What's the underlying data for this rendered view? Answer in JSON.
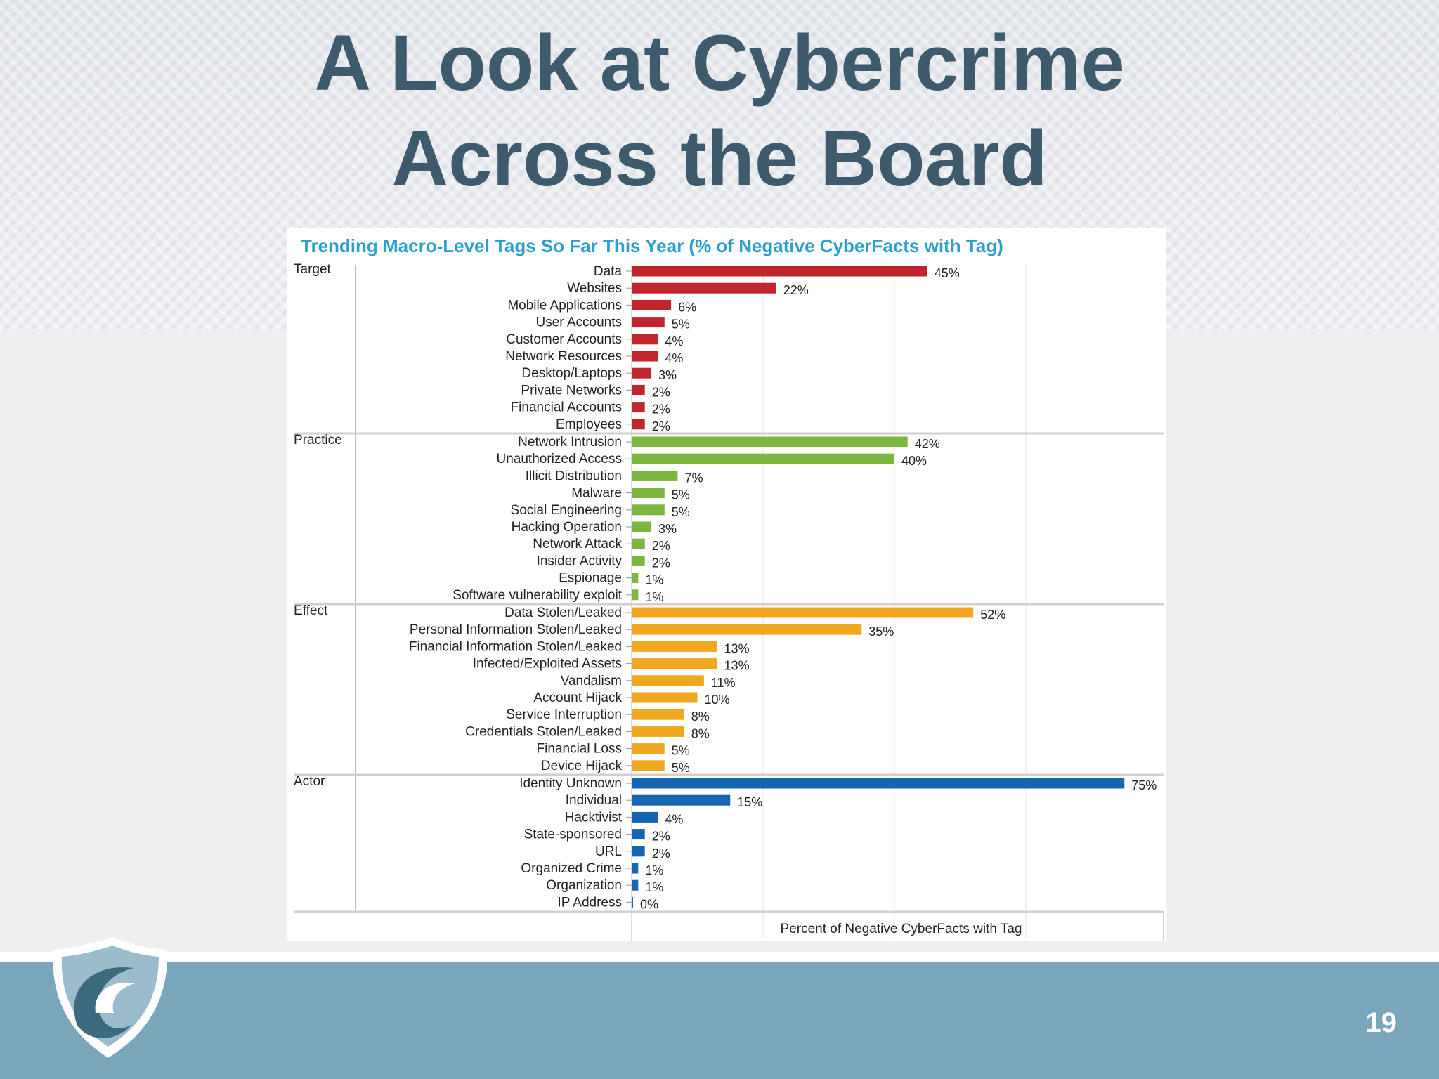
{
  "slide": {
    "title_line1": "A Look at Cybercrime",
    "title_line2": "Across the Board",
    "page_number": "19"
  },
  "colors": {
    "title": "#3e5a6d",
    "chart_title": "#2c9fd0",
    "target": "#c0262e",
    "practice": "#7cb540",
    "effect": "#f0a821",
    "actor": "#1565b0",
    "footer": "#79a6ba"
  },
  "logo": {
    "icon": "shield-wave-icon"
  },
  "chart_data": {
    "type": "bar",
    "orientation": "horizontal",
    "title": "Trending Macro-Level Tags So Far This Year (% of Negative CyberFacts with Tag)",
    "xlabel": "Percent of Negative CyberFacts with Tag",
    "xlim": [
      0,
      80
    ],
    "grid": true,
    "groups": [
      {
        "name": "Target",
        "color": "#c0262e",
        "categories": [
          "Data",
          "Websites",
          "Mobile Applications",
          "User Accounts",
          "Customer Accounts",
          "Network Resources",
          "Desktop/Laptops",
          "Private Networks",
          "Financial Accounts",
          "Employees"
        ],
        "values": [
          45,
          22,
          6,
          5,
          4,
          4,
          3,
          2,
          2,
          2
        ],
        "labels": [
          "45%",
          "22%",
          "6%",
          "5%",
          "4%",
          "4%",
          "3%",
          "2%",
          "2%",
          "2%"
        ]
      },
      {
        "name": "Practice",
        "color": "#7cb540",
        "categories": [
          "Network Intrusion",
          "Unauthorized Access",
          "Illicit Distribution",
          "Malware",
          "Social Engineering",
          "Hacking Operation",
          "Network Attack",
          "Insider Activity",
          "Espionage",
          "Software vulnerability exploit"
        ],
        "values": [
          42,
          40,
          7,
          5,
          5,
          3,
          2,
          2,
          1,
          1
        ],
        "labels": [
          "42%",
          "40%",
          "7%",
          "5%",
          "5%",
          "3%",
          "2%",
          "2%",
          "1%",
          "1%"
        ]
      },
      {
        "name": "Effect",
        "color": "#f0a821",
        "categories": [
          "Data Stolen/Leaked",
          "Personal Information Stolen/Leaked",
          "Financial Information Stolen/Leaked",
          "Infected/Exploited Assets",
          "Vandalism",
          "Account Hijack",
          "Service Interruption",
          "Credentials Stolen/Leaked",
          "Financial Loss",
          "Device Hijack"
        ],
        "values": [
          52,
          35,
          13,
          13,
          11,
          10,
          8,
          8,
          5,
          5
        ],
        "labels": [
          "52%",
          "35%",
          "13%",
          "13%",
          "11%",
          "10%",
          "8%",
          "8%",
          "5%",
          "5%"
        ]
      },
      {
        "name": "Actor",
        "color": "#1565b0",
        "categories": [
          "Identity Unknown",
          "Individual",
          "Hacktivist",
          "State-sponsored",
          "URL",
          "Organized Crime",
          "Organization",
          "IP Address"
        ],
        "values": [
          75,
          15,
          4,
          2,
          2,
          1,
          1,
          0
        ],
        "labels": [
          "75%",
          "15%",
          "4%",
          "2%",
          "2%",
          "1%",
          "1%",
          "0%"
        ]
      }
    ]
  }
}
